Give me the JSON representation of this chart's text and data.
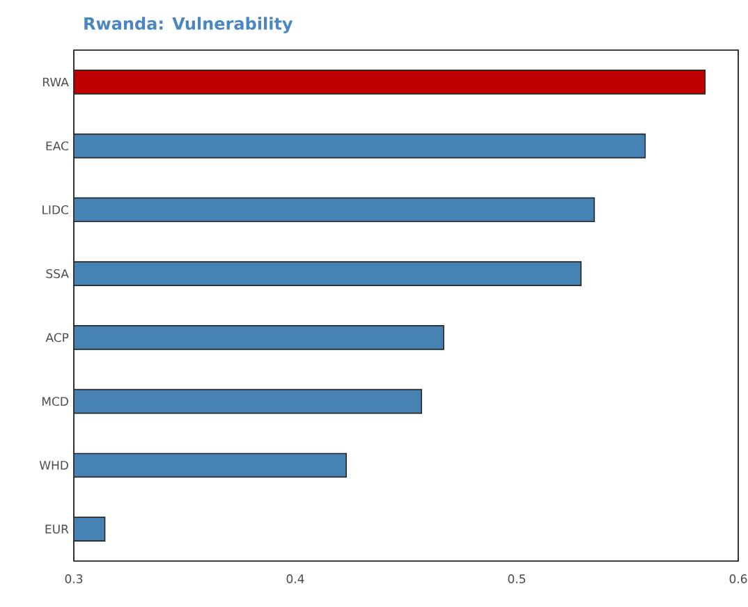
{
  "chart_data": {
    "type": "bar",
    "orientation": "horizontal",
    "title": "Rwanda: Vulnerability",
    "categories": [
      "RWA",
      "EAC",
      "LIDC",
      "SSA",
      "ACP",
      "MCD",
      "WHD",
      "EUR"
    ],
    "values": [
      0.585,
      0.558,
      0.535,
      0.529,
      0.467,
      0.457,
      0.423,
      0.314
    ],
    "colors": [
      "#c00000",
      "#4682b4",
      "#4682b4",
      "#4682b4",
      "#4682b4",
      "#4682b4",
      "#4682b4",
      "#4682b4"
    ],
    "xlim": [
      0.3,
      0.6
    ],
    "xticks": [
      0.3,
      0.4,
      0.5,
      0.6
    ],
    "grid": false
  }
}
